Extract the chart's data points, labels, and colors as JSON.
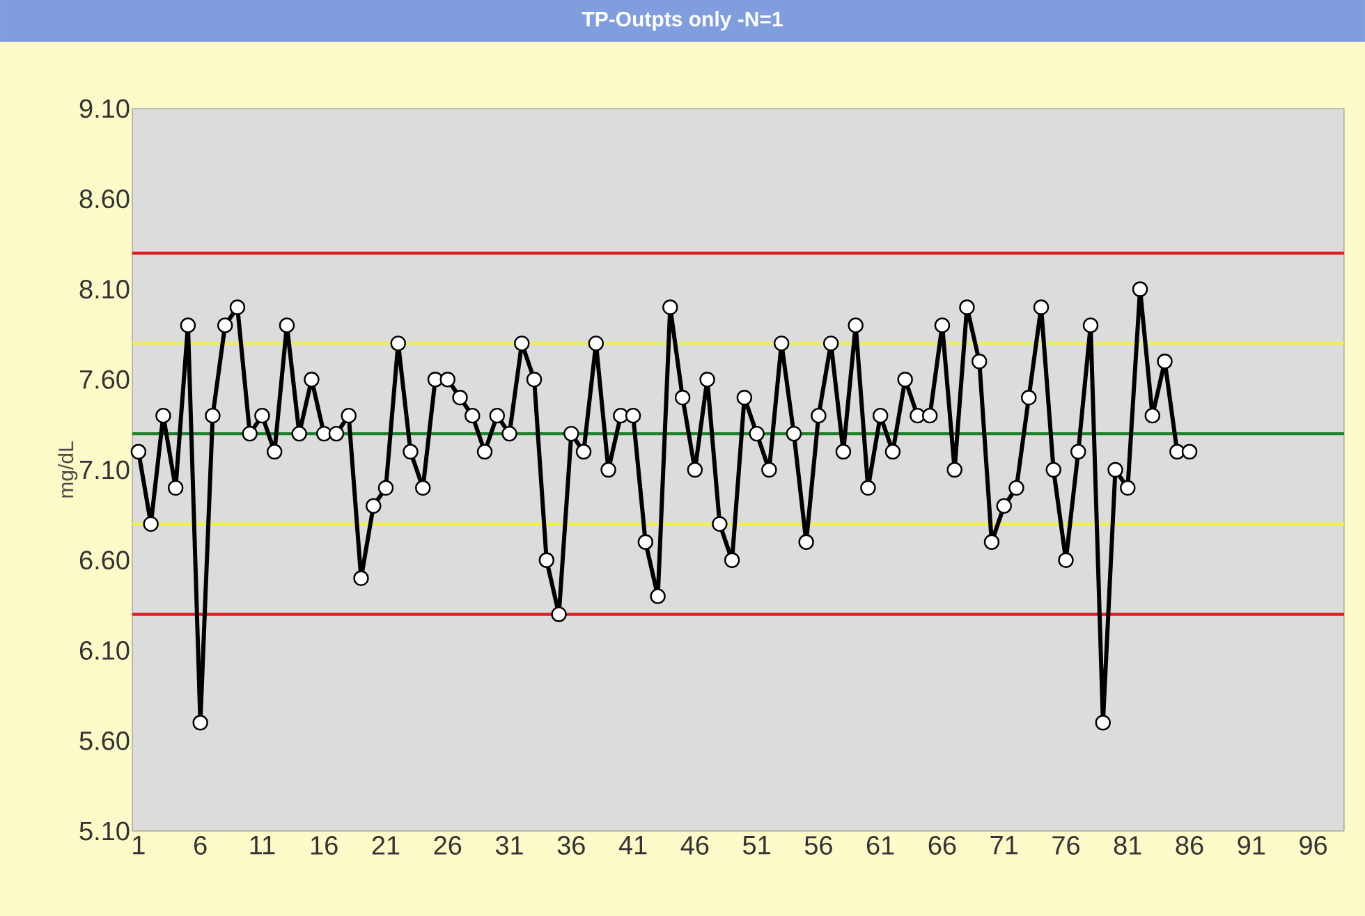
{
  "chart_data": {
    "type": "line",
    "title": "TP-Outpts only -N=1",
    "ylabel": "mg/dL",
    "x": [
      1,
      2,
      3,
      4,
      5,
      6,
      7,
      8,
      9,
      10,
      11,
      12,
      13,
      14,
      15,
      16,
      17,
      18,
      19,
      20,
      21,
      22,
      23,
      24,
      25,
      26,
      27,
      28,
      29,
      30,
      31,
      32,
      33,
      34,
      35,
      36,
      37,
      38,
      39,
      40,
      41,
      42,
      43,
      44,
      45,
      46,
      47,
      48,
      49,
      50,
      51,
      52,
      53,
      54,
      55,
      56,
      57,
      58,
      59,
      60,
      61,
      62,
      63,
      64,
      65,
      66,
      67,
      68,
      69,
      70,
      71,
      72,
      73,
      74,
      75,
      76,
      77,
      78,
      79,
      80,
      81,
      82,
      83,
      84,
      85,
      86
    ],
    "series": [
      {
        "color": "#000000",
        "values": [
          7.2,
          6.8,
          7.4,
          7.0,
          7.9,
          5.7,
          7.4,
          7.9,
          8.0,
          7.3,
          7.4,
          7.2,
          7.9,
          7.3,
          7.6,
          7.3,
          7.3,
          7.4,
          6.5,
          6.9,
          7.0,
          7.8,
          7.2,
          7.0,
          7.6,
          7.6,
          7.5,
          7.4,
          7.2,
          7.4,
          7.3,
          7.8,
          7.6,
          6.6,
          6.3,
          7.3,
          7.2,
          7.8,
          7.1,
          7.4,
          7.4,
          6.7,
          6.4,
          8.0,
          7.5,
          7.1,
          7.6,
          6.8,
          6.6,
          7.5,
          7.3,
          7.1,
          7.8,
          7.3,
          6.7,
          7.4,
          7.8,
          7.2,
          7.9,
          7.0,
          7.4,
          7.2,
          7.6,
          7.4,
          7.4,
          7.9,
          7.1,
          8.0,
          7.7,
          6.7,
          6.9,
          7.0,
          7.5,
          8.0,
          7.1,
          6.6,
          7.2,
          7.9,
          5.7,
          7.1,
          7.0,
          8.1,
          7.4,
          7.7,
          7.2,
          7.2
        ]
      }
    ],
    "xlim": [
      0.5,
      98.5
    ],
    "xticks": [
      1,
      6,
      11,
      16,
      21,
      26,
      31,
      36,
      41,
      46,
      51,
      56,
      61,
      66,
      71,
      76,
      81,
      86,
      91,
      96
    ],
    "ylim": [
      5.1,
      9.1
    ],
    "yticks": [
      {
        "value": 5.1,
        "label": "5.10"
      },
      {
        "value": 5.6,
        "label": "5.60"
      },
      {
        "value": 6.1,
        "label": "6.10"
      },
      {
        "value": 6.6,
        "label": "6.60"
      },
      {
        "value": 7.1,
        "label": "7.10"
      },
      {
        "value": 7.6,
        "label": "7.60"
      },
      {
        "value": 8.1,
        "label": "8.10"
      },
      {
        "value": 8.6,
        "label": "8.60"
      },
      {
        "value": 9.1,
        "label": "9.10"
      }
    ],
    "ref_lines": [
      {
        "axis": "y",
        "value": 8.3,
        "color": "#dd1c1c"
      },
      {
        "axis": "y",
        "value": 7.8,
        "color": "#f2f23c"
      },
      {
        "axis": "y",
        "value": 7.3,
        "color": "#1f7f2a"
      },
      {
        "axis": "y",
        "value": 6.8,
        "color": "#f2f23c"
      },
      {
        "axis": "y",
        "value": 6.3,
        "color": "#dd1c1c"
      }
    ],
    "marker": "circle",
    "line_style": "solid"
  }
}
